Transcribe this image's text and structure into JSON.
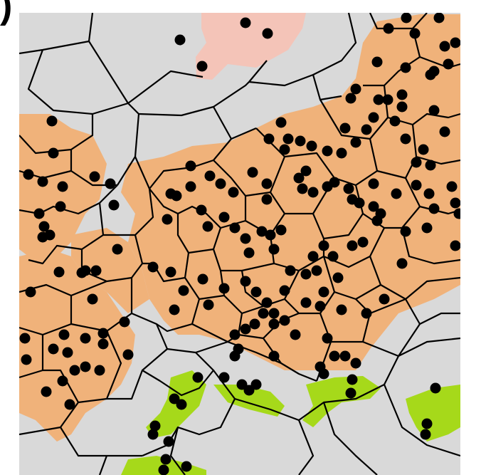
{
  "figure": {
    "panel_label": ")",
    "background_color": "#d9d9d9",
    "cell_edge_color": "#000000",
    "site_color": "#000000",
    "land_cover_colors": {
      "orange": "#f0b27a",
      "pink": "#f4c4b8",
      "green": "#a6d91a"
    }
  }
}
